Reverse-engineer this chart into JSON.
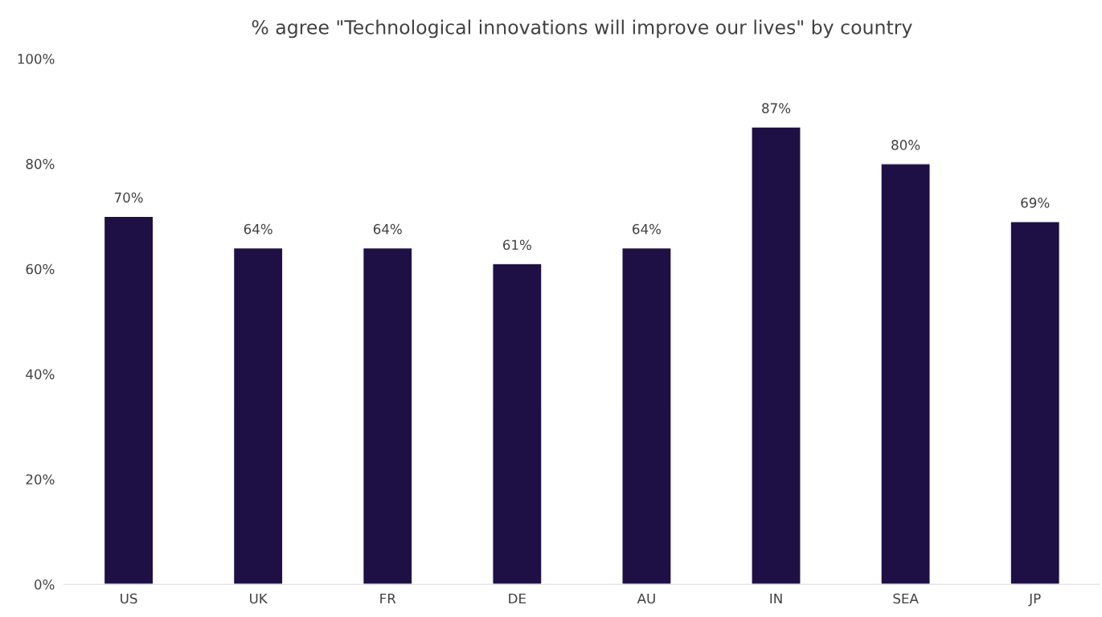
{
  "chart_data": {
    "type": "bar",
    "title": "% agree \"Technological innovations will improve our lives\" by country",
    "categories": [
      "US",
      "UK",
      "FR",
      "DE",
      "AU",
      "IN",
      "SEA",
      "JP"
    ],
    "values": [
      70,
      64,
      64,
      61,
      64,
      87,
      80,
      69
    ],
    "color": "#1e0f45",
    "value_labels": [
      "70%",
      "64%",
      "64%",
      "61%",
      "64%",
      "87%",
      "80%",
      "69%"
    ],
    "ylim": [
      0,
      100
    ],
    "yticks": [
      {
        "value": 0,
        "label": "0%"
      },
      {
        "value": 20,
        "label": "20%"
      },
      {
        "value": 40,
        "label": "40%"
      },
      {
        "value": 60,
        "label": "60%"
      },
      {
        "value": 80,
        "label": "80%"
      },
      {
        "value": 100,
        "label": "100%"
      }
    ],
    "grid": false,
    "legend": false
  }
}
